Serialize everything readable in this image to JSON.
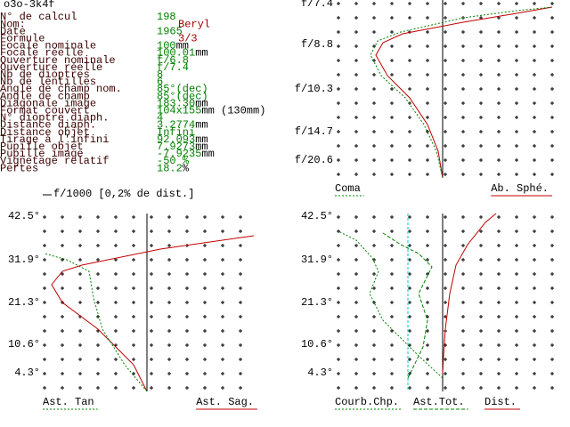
{
  "header": {
    "title": "o3o-3k4f"
  },
  "info": {
    "rows": [
      [
        "N° de calcul",
        "198",
        ""
      ],
      [
        "Nom:",
        "",
        "Beryl"
      ],
      [
        "Date",
        "1965",
        ""
      ],
      [
        "Formule",
        "",
        "3/3"
      ],
      [
        "Focale nominale",
        "100",
        "mm"
      ],
      [
        "Focale réelle",
        "100.01",
        "mm"
      ],
      [
        "Ouverture nominale",
        "f/6.8",
        ""
      ],
      [
        "Ouverture réelle",
        "f/7.4",
        ""
      ],
      [
        "Nb de dioptres",
        "8",
        ""
      ],
      [
        "Nb de lentilles",
        "6",
        ""
      ],
      [
        "Angle de champ nom.",
        "85°(dec)",
        ""
      ],
      [
        "Angle de champ",
        "85°(dec)",
        ""
      ],
      [
        "Diagonale image",
        "183.30",
        "mm"
      ],
      [
        "Format couvert",
        "104x155",
        "mm (130mm)"
      ],
      [
        "N° dioptre diaph.",
        "4",
        ""
      ],
      [
        "Distance diaph.",
        "3.2774",
        "mm"
      ],
      [
        "Distance objet",
        "Infini",
        ""
      ],
      [
        "Tirage à l'infini",
        "92.093",
        "mm"
      ],
      [
        "Pupille objet",
        "7.9273",
        "mm"
      ],
      [
        "Pupille image",
        "-7.9235",
        "mm"
      ],
      [
        "Vignetage relatif",
        "-50 %",
        ""
      ],
      [
        "Pertes",
        "18.2",
        " %"
      ]
    ]
  },
  "plots": [
    {
      "y_labels": [
        "f/7.4",
        "f/8.8",
        "f/10.3",
        "f/14.7",
        "f/20.6"
      ],
      "legend": [
        "Coma",
        "Ab. Sphé."
      ]
    },
    {
      "caption": "f/1000 [0,2% de dist.]",
      "y_labels": [
        "42.5°",
        "31.9°",
        "21.3°",
        "10.6°",
        "4.3°"
      ],
      "legend": [
        "Ast. Tan",
        "Ast. Sag."
      ]
    },
    {
      "y_labels": [
        "42.5°",
        "31.9°",
        "21.3°",
        "10.6°",
        "4.3°"
      ],
      "legend": [
        "Courb.Chp.",
        "Ast.Tot.",
        "Dist."
      ]
    }
  ]
}
